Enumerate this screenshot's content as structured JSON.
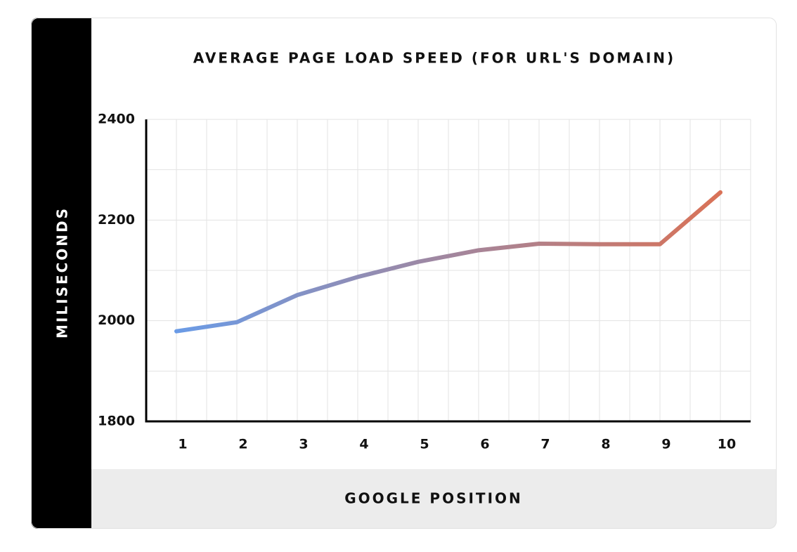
{
  "chart_data": {
    "type": "line",
    "title": "AVERAGE PAGE LOAD SPEED (FOR URL'S DOMAIN)",
    "x_label": "GOOGLE POSITION",
    "y_label": "MILISECONDS",
    "categories": [
      "1",
      "2",
      "3",
      "4",
      "5",
      "6",
      "7",
      "8",
      "9",
      "10"
    ],
    "values": [
      1979,
      1997,
      2051,
      2087,
      2117,
      2140,
      2153,
      2152,
      2152,
      2255
    ],
    "colors": [
      "#6a9be6",
      "#d97257"
    ],
    "ylim": [
      1800,
      2400
    ],
    "yticks": [
      1800,
      2000,
      2200,
      2400
    ],
    "grid": true
  }
}
